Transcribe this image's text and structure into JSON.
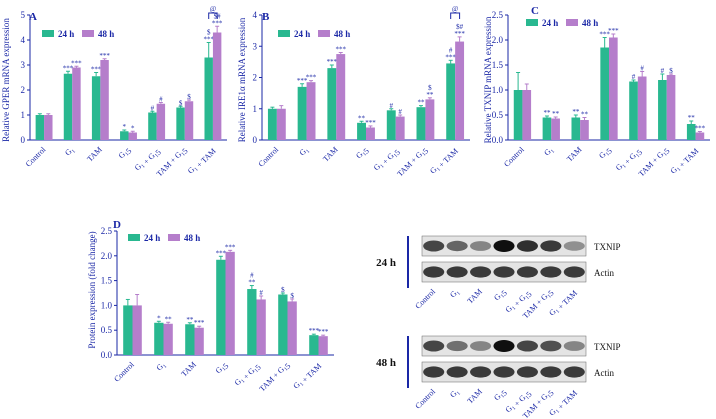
{
  "figure": {
    "legend_24": "24 h",
    "legend_48": "48 h",
    "colors": {
      "h24": "#29b890",
      "h48": "#b57ecb",
      "sig_text": "#1a27a6",
      "axis": "#1a27a6",
      "text": "#1a27a6"
    }
  },
  "chart_data": [
    {
      "panel": "A",
      "type": "bar",
      "ylabel": "Relative GPER mRNA expression",
      "ylim": [
        0,
        5
      ],
      "ticks": [
        0,
        1,
        2,
        3,
        4,
        5
      ],
      "categories": [
        "Control",
        "G1",
        "TAM",
        "G15",
        "G1 + G15",
        "TAM + G15",
        "G1 + TAM"
      ],
      "series": [
        {
          "name": "24 h",
          "values": [
            1.0,
            2.65,
            2.55,
            0.35,
            1.1,
            1.3,
            3.3
          ],
          "errors": [
            0.05,
            0.1,
            0.15,
            0.05,
            0.05,
            0.05,
            0.6
          ]
        },
        {
          "name": "48 h",
          "values": [
            1.0,
            2.9,
            3.2,
            0.3,
            1.45,
            1.55,
            4.3
          ],
          "errors": [
            0.05,
            0.05,
            0.05,
            0.05,
            0.05,
            0.05,
            0.25
          ]
        }
      ],
      "sig24": [
        "",
        "***",
        "***",
        "*",
        "#",
        "$",
        "$\n***"
      ],
      "sig48": [
        "",
        "***",
        "***",
        "*",
        "#",
        "$",
        "$#\n***"
      ],
      "bracket": "@"
    },
    {
      "panel": "B",
      "type": "bar",
      "ylabel": "Relative IRE1α mRNA expression",
      "ylim": [
        0,
        4
      ],
      "ticks": [
        0,
        1,
        2,
        3,
        4
      ],
      "categories": [
        "Control",
        "G1",
        "TAM",
        "G15",
        "G1 + G15",
        "TAM + G15",
        "G1 + TAM"
      ],
      "series": [
        {
          "name": "24 h",
          "values": [
            1.0,
            1.7,
            2.3,
            0.55,
            0.95,
            1.05,
            2.45
          ],
          "errors": [
            0.05,
            0.1,
            0.1,
            0.05,
            0.05,
            0.05,
            0.1
          ]
        },
        {
          "name": "48 h",
          "values": [
            1.0,
            1.85,
            2.75,
            0.4,
            0.75,
            1.3,
            3.15
          ],
          "errors": [
            0.1,
            0.05,
            0.05,
            0.05,
            0.05,
            0.05,
            0.15
          ]
        }
      ],
      "sig24": [
        "",
        "***",
        "***",
        "**",
        "#",
        "**",
        "#\n***"
      ],
      "sig48": [
        "",
        "***",
        "***",
        "***",
        "#",
        "$\n**",
        "$#\n***"
      ],
      "bracket": "@"
    },
    {
      "panel": "C",
      "type": "bar",
      "ylabel": "Relative TXNIP mRNA expression",
      "ylim": [
        0,
        2.5
      ],
      "ticks": [
        0.0,
        0.5,
        1.0,
        1.5,
        2.0,
        2.5
      ],
      "categories": [
        "Control",
        "G1",
        "TAM",
        "G15",
        "G1 + G15",
        "TAM + G15",
        "G1 + TAM"
      ],
      "series": [
        {
          "name": "24 h",
          "values": [
            1.0,
            0.45,
            0.45,
            1.85,
            1.17,
            1.2,
            0.32
          ],
          "errors": [
            0.35,
            0.03,
            0.05,
            0.2,
            0.03,
            0.12,
            0.06
          ]
        },
        {
          "name": "48 h",
          "values": [
            1.0,
            0.43,
            0.4,
            2.05,
            1.27,
            1.3,
            0.15
          ],
          "errors": [
            0.12,
            0.03,
            0.05,
            0.07,
            0.1,
            0.02,
            0.02
          ]
        }
      ],
      "sig24": [
        "",
        "**",
        "**",
        "***",
        "#",
        "#",
        "**"
      ],
      "sig48": [
        "",
        "**",
        "**",
        "***",
        "#",
        "$",
        "***"
      ],
      "bracket": ""
    },
    {
      "panel": "D",
      "type": "bar",
      "ylabel": "Protein expression (fold change)",
      "ylim": [
        0,
        2.5
      ],
      "ticks": [
        0.0,
        0.5,
        1.0,
        1.5,
        2.0,
        2.5
      ],
      "categories": [
        "Control",
        "G1",
        "TAM",
        "G15",
        "G1 + G15",
        "TAM + G15",
        "G1 + TAM"
      ],
      "series": [
        {
          "name": "24 h",
          "values": [
            1.0,
            0.65,
            0.62,
            1.92,
            1.33,
            1.22,
            0.4
          ],
          "errors": [
            0.12,
            0.03,
            0.03,
            0.07,
            0.07,
            0.03,
            0.02
          ]
        },
        {
          "name": "48 h",
          "values": [
            1.0,
            0.63,
            0.55,
            2.08,
            1.12,
            1.08,
            0.38
          ],
          "errors": [
            0.22,
            0.03,
            0.03,
            0.03,
            0.07,
            0.05,
            0.02
          ]
        }
      ],
      "sig24": [
        "",
        "*",
        "**",
        "***",
        "#\n**",
        "$",
        "***"
      ],
      "sig48": [
        "",
        "**",
        "***",
        "***",
        "#",
        "$",
        "***"
      ],
      "bracket": ""
    }
  ],
  "blots": {
    "rows": [
      {
        "time": "24 h",
        "bands": [
          {
            "protein": "TXNIP",
            "intensity": [
              0.75,
              0.6,
              0.45,
              1.0,
              0.85,
              0.8,
              0.4
            ]
          },
          {
            "protein": "Actin",
            "intensity": [
              0.8,
              0.8,
              0.8,
              0.8,
              0.8,
              0.8,
              0.8
            ]
          }
        ]
      },
      {
        "time": "48 h",
        "bands": [
          {
            "protein": "TXNIP",
            "intensity": [
              0.75,
              0.55,
              0.45,
              1.0,
              0.75,
              0.7,
              0.45
            ]
          },
          {
            "protein": "Actin",
            "intensity": [
              0.8,
              0.8,
              0.8,
              0.8,
              0.8,
              0.8,
              0.8
            ]
          }
        ]
      }
    ],
    "lanes": [
      "Control",
      "G1",
      "TAM",
      "G15",
      "G1 + G15",
      "TAM + G15",
      "G1 + TAM"
    ]
  }
}
